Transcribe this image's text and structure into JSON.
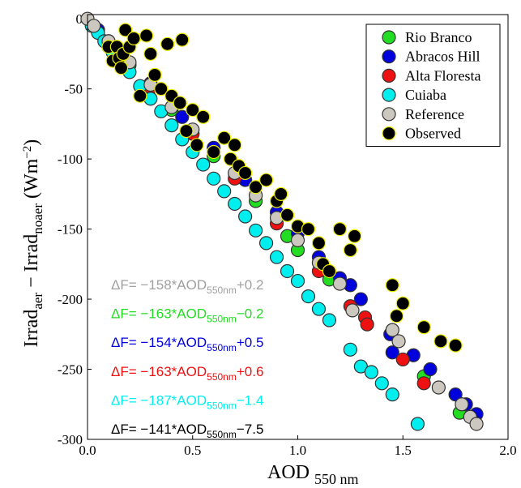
{
  "chart_data": {
    "type": "scatter",
    "x_label": [
      "AOD",
      "550 nm"
    ],
    "y_label": [
      "Irrad",
      "aer",
      " − Irrad",
      "noaer",
      " (Wm",
      "−2",
      ")"
    ],
    "xlim": [
      0,
      2
    ],
    "ylim": [
      -300,
      3
    ],
    "xticks": [
      {
        "value": 0,
        "label": "0.0"
      },
      {
        "value": 0.5,
        "label": "0.5"
      },
      {
        "value": 1,
        "label": "1.0"
      },
      {
        "value": 1.5,
        "label": "1.5"
      },
      {
        "value": 2,
        "label": "2.0"
      }
    ],
    "yticks": [
      0,
      -50,
      -100,
      -150,
      -200,
      -250,
      -300
    ],
    "legend": "upper right",
    "series": [
      {
        "name": "Rio Branco",
        "color": "#22dd22",
        "edgecolor": "#333333",
        "x": [
          0.05,
          0.2,
          0.4,
          0.6,
          0.8,
          0.95,
          1.0,
          1.15,
          1.6,
          1.77
        ],
        "y": [
          -8,
          -33,
          -65,
          -98,
          -130,
          -155,
          -165,
          -186,
          -255,
          -281
        ]
      },
      {
        "name": "Abracos Hill",
        "color": "#0000dd",
        "edgecolor": "#333333",
        "x": [
          0.05,
          0.15,
          0.3,
          0.45,
          0.6,
          0.75,
          0.9,
          1.0,
          1.1,
          1.2,
          1.25,
          1.3,
          1.44,
          1.45,
          1.55,
          1.63,
          1.75,
          1.8,
          1.85
        ],
        "y": [
          -8,
          -24,
          -46,
          -70,
          -92,
          -115,
          -138,
          -153,
          -170,
          -185,
          -190,
          -200,
          -225,
          -238,
          -240,
          -250,
          -268,
          -275,
          -282
        ]
      },
      {
        "name": "Alta Floresta",
        "color": "#ee1111",
        "edgecolor": "#333333",
        "x": [
          0.1,
          0.3,
          0.5,
          0.7,
          0.9,
          1.1,
          1.25,
          1.32,
          1.33,
          1.5,
          1.6
        ],
        "y": [
          -16,
          -49,
          -82,
          -114,
          -146,
          -180,
          -205,
          -213,
          -218,
          -243,
          -260
        ]
      },
      {
        "name": "Cuiaba",
        "color": "#00eeee",
        "edgecolor": "#333333",
        "x": [
          0.02,
          0.05,
          0.08,
          0.1,
          0.12,
          0.15,
          0.2,
          0.25,
          0.3,
          0.35,
          0.4,
          0.45,
          0.5,
          0.55,
          0.6,
          0.65,
          0.7,
          0.75,
          0.8,
          0.85,
          0.9,
          0.95,
          1.0,
          1.05,
          1.1,
          1.15,
          1.25,
          1.3,
          1.35,
          1.4,
          1.45,
          1.57
        ],
        "y": [
          -5,
          -10,
          -16,
          -20,
          -24,
          -29,
          -38,
          -48,
          -57,
          -66,
          -76,
          -86,
          -95,
          -104,
          -114,
          -123,
          -132,
          -141,
          -151,
          -160,
          -170,
          -180,
          -187,
          -198,
          -207,
          -215,
          -236,
          -248,
          -252,
          -260,
          -268,
          -289
        ]
      },
      {
        "name": "Reference",
        "color": "#ccc8c0",
        "edgecolor": "#333333",
        "x": [
          0,
          0.03,
          0.1,
          0.2,
          0.3,
          0.4,
          0.5,
          0.6,
          0.7,
          0.8,
          0.9,
          1.0,
          1.1,
          1.2,
          1.26,
          1.45,
          1.48,
          1.67,
          1.78,
          1.82,
          1.85
        ],
        "y": [
          0,
          -5,
          -16,
          -31,
          -47,
          -63,
          -79,
          -95,
          -110,
          -126,
          -142,
          -158,
          -174,
          -189,
          -208,
          -222,
          -230,
          -263,
          -275,
          -284,
          -289
        ]
      },
      {
        "name": "Observed",
        "color": "#000000",
        "edgecolor": "#eeee00",
        "x": [
          0.1,
          0.12,
          0.14,
          0.15,
          0.16,
          0.17,
          0.18,
          0.2,
          0.22,
          0.25,
          0.28,
          0.3,
          0.32,
          0.35,
          0.38,
          0.4,
          0.44,
          0.45,
          0.47,
          0.5,
          0.52,
          0.55,
          0.6,
          0.65,
          0.68,
          0.7,
          0.72,
          0.75,
          0.8,
          0.85,
          0.9,
          0.92,
          0.95,
          1.0,
          1.05,
          1.1,
          1.12,
          1.15,
          1.2,
          1.25,
          1.27,
          1.45,
          1.47,
          1.5,
          1.6,
          1.68,
          1.75
        ],
        "y": [
          -20,
          -30,
          -20,
          -28,
          -35,
          -25,
          -8,
          -20,
          -14,
          -55,
          -12,
          -25,
          -40,
          -50,
          -18,
          -55,
          -60,
          -15,
          -80,
          -65,
          -90,
          -70,
          -95,
          -85,
          -100,
          -90,
          -105,
          -110,
          -120,
          -115,
          -130,
          -125,
          -140,
          -148,
          -150,
          -160,
          -175,
          -180,
          -150,
          -165,
          -155,
          -190,
          -212,
          -203,
          -220,
          -230,
          -233
        ]
      }
    ],
    "annotations": [
      {
        "text": "ΔF= −158*AOD",
        "sub": "550nm",
        "tail": "+0.2",
        "color": "#a0a0a0"
      },
      {
        "text": "ΔF= −163*AOD",
        "sub": "550nm",
        "tail": "−0.2",
        "color": "#22dd22"
      },
      {
        "text": "ΔF= −154*AOD",
        "sub": "550nm",
        "tail": "+0.5",
        "color": "#0000dd"
      },
      {
        "text": "ΔF= −163*AOD",
        "sub": "550nm",
        "tail": "+0.6",
        "color": "#ee1111"
      },
      {
        "text": "ΔF= −187*AOD",
        "sub": "550nm",
        "tail": "−1.4",
        "color": "#00eeee"
      },
      {
        "text": "ΔF= −141*AOD",
        "sub": "550nm",
        "tail": "−7.5",
        "color": "#000000"
      }
    ]
  }
}
